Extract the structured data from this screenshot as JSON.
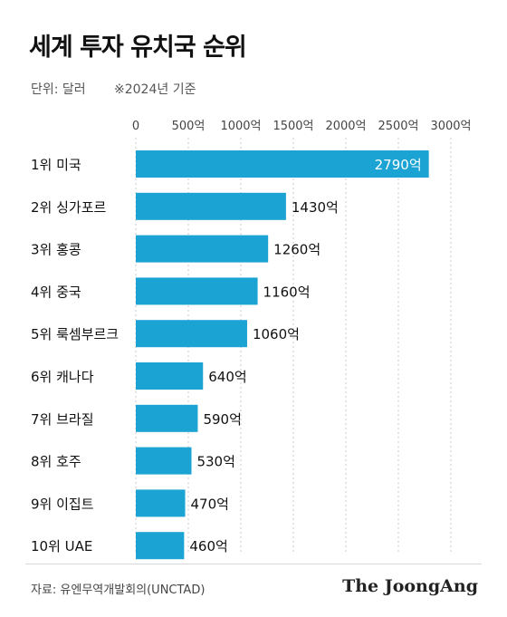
{
  "title": "세계 투자 유치국 순위",
  "unit_label": "단위: 달러",
  "basis_label": "※2024년 기준",
  "source": "자료: 유엔무역개발회의(UNCTAD)",
  "brand": "The JoongAng",
  "colors": {
    "bar": "#1aa3d3",
    "grid": "#c8c8c8",
    "label_inside": "#ffffff",
    "text": "#111111"
  },
  "chart_data": {
    "type": "bar",
    "orientation": "horizontal",
    "categories": [
      "1위 미국",
      "2위 싱가포르",
      "3위 홍콩",
      "4위 중국",
      "5위 룩셈부르크",
      "6위 캐나다",
      "7위 브라질",
      "8위 호주",
      "9위 이집트",
      "10위 UAE"
    ],
    "values": [
      2790,
      1430,
      1260,
      1160,
      1060,
      640,
      590,
      530,
      470,
      460
    ],
    "value_labels": [
      "2790억",
      "1430억",
      "1260억",
      "1160억",
      "1060억",
      "640억",
      "590억",
      "530억",
      "470억",
      "460억"
    ],
    "xlim": [
      0,
      3000
    ],
    "xticks": [
      0,
      500,
      1000,
      1500,
      2000,
      2500,
      3000
    ],
    "xtick_labels": [
      "0",
      "500억",
      "1000억",
      "1500억",
      "2000억",
      "2500억",
      "3000억"
    ],
    "grid": true
  }
}
